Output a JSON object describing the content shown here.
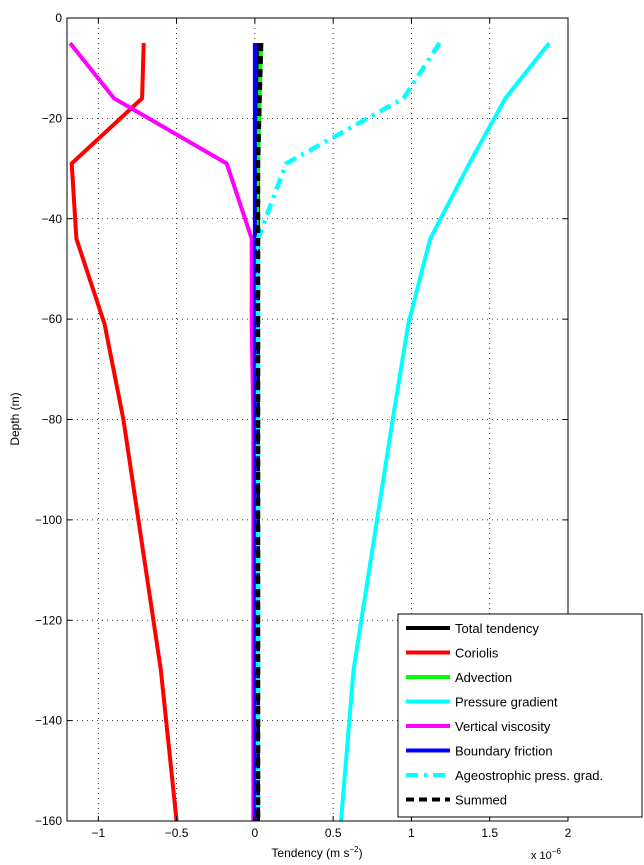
{
  "chart_data": {
    "type": "line",
    "xlabel": "Tendency (m s",
    "xlabel_sup": "−2",
    "xlabel_close": ")",
    "ylabel": "Depth (m)",
    "x_multiplier": "x 10",
    "x_multiplier_exp": "−6",
    "xlim": [
      -1.2,
      2.0
    ],
    "ylim": [
      -160,
      0
    ],
    "xticks": [
      -1,
      -0.5,
      0,
      0.5,
      1,
      1.5,
      2
    ],
    "xtick_labels": [
      "−1",
      "−0.5",
      "0",
      "0.5",
      "1",
      "1.5",
      "2"
    ],
    "yticks": [
      0,
      -20,
      -40,
      -60,
      -80,
      -100,
      -120,
      -140,
      -160
    ],
    "ytick_labels": [
      "0",
      "−20",
      "−40",
      "−60",
      "−80",
      "−100",
      "−120",
      "−140",
      "−160"
    ],
    "grid": true,
    "legend_position": "bottom-right",
    "series": [
      {
        "name": "Total tendency",
        "color": "#000000",
        "style": "solid",
        "x": [
          0.02,
          0.02,
          0.02,
          0.02,
          0.02,
          0.02,
          0.02,
          0.02
        ],
        "y": [
          -5,
          -16,
          -29,
          -44,
          -61,
          -80,
          -130,
          -160
        ]
      },
      {
        "name": "Coriolis",
        "color": "#ff0000",
        "style": "solid",
        "x": [
          -0.71,
          -0.72,
          -1.17,
          -1.14,
          -0.96,
          -0.84,
          -0.6,
          -0.5
        ],
        "y": [
          -5,
          -16,
          -29,
          -44,
          -61,
          -80,
          -130,
          -160
        ]
      },
      {
        "name": "Advection",
        "color": "#00ff00",
        "style": "solid",
        "x": [
          0.04,
          0.03,
          0.02,
          0.01,
          0.0,
          0.0,
          0.0,
          0.0
        ],
        "y": [
          -5,
          -16,
          -29,
          -44,
          -61,
          -80,
          -130,
          -160
        ]
      },
      {
        "name": "Pressure gradient",
        "color": "#00ffff",
        "style": "solid",
        "x": [
          1.88,
          1.6,
          1.37,
          1.12,
          0.98,
          0.88,
          0.63,
          0.55
        ],
        "y": [
          -5,
          -16,
          -29,
          -44,
          -61,
          -80,
          -130,
          -160
        ]
      },
      {
        "name": "Vertical viscosity",
        "color": "#ff00ff",
        "style": "solid",
        "x": [
          -1.18,
          -0.9,
          -0.18,
          -0.02,
          -0.02,
          -0.01,
          -0.01,
          -0.01
        ],
        "y": [
          -5,
          -16,
          -29,
          -44,
          -61,
          -80,
          -130,
          -160
        ]
      },
      {
        "name": "Boundary friction",
        "color": "#0000ff",
        "style": "solid",
        "x": [
          0.0,
          0.0,
          0.0,
          0.0,
          0.0,
          0.0,
          0.0,
          0.0
        ],
        "y": [
          -5,
          -16,
          -29,
          -44,
          -61,
          -80,
          -130,
          -160
        ]
      },
      {
        "name": "Ageostrophic press. grad.",
        "color": "#00ffff",
        "style": "dashdot",
        "x": [
          1.18,
          0.95,
          0.2,
          0.02,
          0.02,
          0.02,
          0.02,
          0.02
        ],
        "y": [
          -5,
          -16,
          -29,
          -44,
          -61,
          -80,
          -130,
          -160
        ]
      },
      {
        "name": "Summed",
        "color": "#000000",
        "style": "dashed",
        "x": [
          0.04,
          0.03,
          0.02,
          0.02,
          0.02,
          0.02,
          0.02,
          0.02
        ],
        "y": [
          -5,
          -16,
          -29,
          -44,
          -61,
          -80,
          -130,
          -160
        ]
      }
    ]
  }
}
